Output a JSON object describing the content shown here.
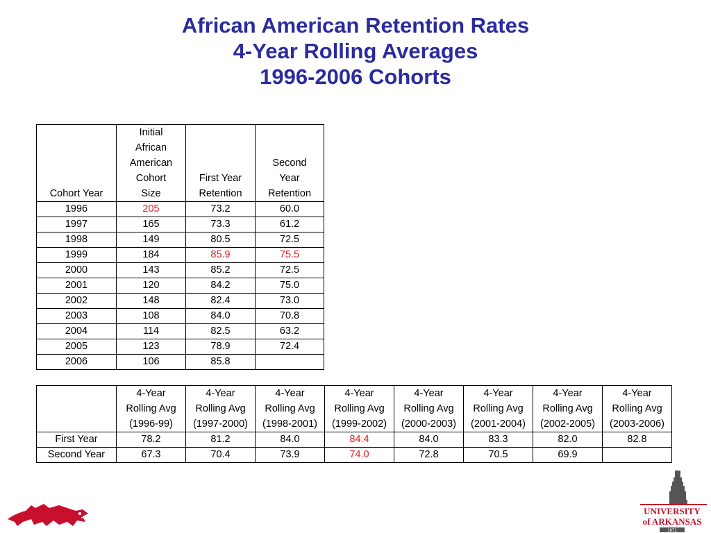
{
  "title": {
    "line1": "African American Retention Rates",
    "line2": "4-Year Rolling Averages",
    "line3": "1996-2006 Cohorts"
  },
  "cohort_table": {
    "headers": [
      [
        "Cohort Year"
      ],
      [
        "Initial",
        "African",
        "American",
        "Cohort",
        "Size"
      ],
      [
        "First Year",
        "Retention"
      ],
      [
        "Second",
        "Year",
        "Retention"
      ]
    ],
    "rows": [
      {
        "year": "1996",
        "size": "205",
        "first": "73.2",
        "second": "60.0"
      },
      {
        "year": "1997",
        "size": "165",
        "first": "73.3",
        "second": "61.2"
      },
      {
        "year": "1998",
        "size": "149",
        "first": "80.5",
        "second": "72.5"
      },
      {
        "year": "1999",
        "size": "184",
        "first": "85.9",
        "second": "75.5"
      },
      {
        "year": "2000",
        "size": "143",
        "first": "85.2",
        "second": "72.5"
      },
      {
        "year": "2001",
        "size": "120",
        "first": "84.2",
        "second": "75.0"
      },
      {
        "year": "2002",
        "size": "148",
        "first": "82.4",
        "second": "73.0"
      },
      {
        "year": "2003",
        "size": "108",
        "first": "84.0",
        "second": "70.8"
      },
      {
        "year": "2004",
        "size": "114",
        "first": "82.5",
        "second": "63.2"
      },
      {
        "year": "2005",
        "size": "123",
        "first": "78.9",
        "second": "72.4"
      },
      {
        "year": "2006",
        "size": "106",
        "first": "85.8",
        "second": ""
      }
    ],
    "highlight_color": "#e02020"
  },
  "rolling_table": {
    "headers": [
      [
        "4-Year",
        "Rolling Avg",
        "(1996-99)"
      ],
      [
        "4-Year",
        "Rolling Avg",
        "(1997-2000)"
      ],
      [
        "4-Year",
        "Rolling Avg",
        "(1998-2001)"
      ],
      [
        "4-Year",
        "Rolling Avg",
        "(1999-2002)"
      ],
      [
        "4-Year",
        "Rolling Avg",
        "(2000-2003)"
      ],
      [
        "4-Year",
        "Rolling Avg",
        "(2001-2004)"
      ],
      [
        "4-Year",
        "Rolling Avg",
        "(2002-2005)"
      ],
      [
        "4-Year",
        "Rolling Avg",
        "(2003-2006)"
      ]
    ],
    "rows": [
      {
        "label": "First Year",
        "values": [
          "78.2",
          "81.2",
          "84.0",
          "84.4",
          "84.0",
          "83.3",
          "82.0",
          "82.8"
        ]
      },
      {
        "label": "Second Year",
        "values": [
          "67.3",
          "70.4",
          "73.9",
          "74.0",
          "72.8",
          "70.5",
          "69.9",
          ""
        ]
      }
    ]
  },
  "logos": {
    "left": "razorback-logo",
    "right_line1": "UNIVERSITY",
    "right_line2": "of ARKANSAS",
    "right_small": "1871"
  },
  "colors": {
    "title": "#2b2b9e",
    "highlight": "#e02020",
    "brand_red": "#c8102e"
  }
}
